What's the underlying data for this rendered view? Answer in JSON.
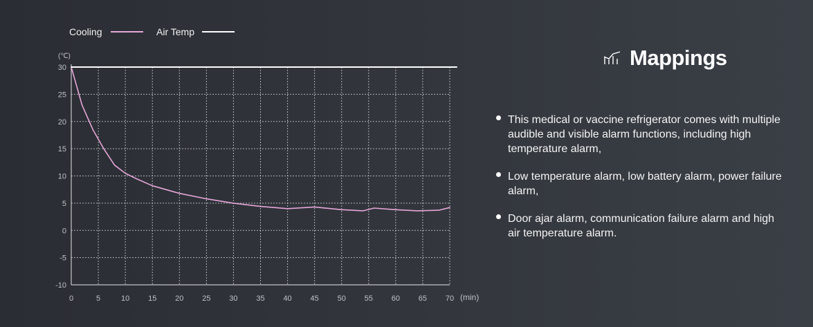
{
  "chart_data": {
    "type": "line",
    "legend": [
      {
        "name": "Cooling",
        "color": "#e7a6da"
      },
      {
        "name": "Air Temp",
        "color": "#ffffff"
      }
    ],
    "y_unit": "(℃)",
    "x_unit": "(min)",
    "x_ticks": [
      "0",
      "5",
      "10",
      "15",
      "20",
      "25",
      "30",
      "35",
      "40",
      "45",
      "50",
      "55",
      "60",
      "65",
      "70"
    ],
    "y_ticks": [
      "30",
      "25",
      "20",
      "15",
      "10",
      "5",
      "0",
      "-5",
      "-10"
    ],
    "xlim": [
      0,
      70
    ],
    "ylim": [
      -10,
      30
    ],
    "grid": true,
    "series": [
      {
        "name": "Cooling",
        "color": "#e7a6da",
        "x": [
          0,
          2,
          4,
          6,
          8,
          10,
          12,
          15,
          20,
          25,
          30,
          35,
          40,
          45,
          50,
          54,
          56,
          60,
          64,
          68,
          70
        ],
        "y": [
          30,
          23,
          18.5,
          15,
          12,
          10.5,
          9.5,
          8.2,
          6.8,
          5.8,
          5,
          4.4,
          4,
          4.3,
          3.8,
          3.6,
          4.1,
          3.8,
          3.6,
          3.7,
          4.2
        ]
      },
      {
        "name": "Air Temp",
        "color": "#ffffff",
        "x": [
          0,
          71
        ],
        "y": [
          30,
          30
        ]
      }
    ]
  },
  "panel": {
    "title": "Mappings",
    "icon": "chart-icon",
    "bullets": [
      "This medical or vaccine refrigerator comes with multiple audible and visible alarm functions, including high temperature alarm,",
      "Low temperature alarm, low battery alarm, power failure alarm,",
      "Door ajar alarm, communication failure alarm and high air temperature alarm."
    ]
  }
}
